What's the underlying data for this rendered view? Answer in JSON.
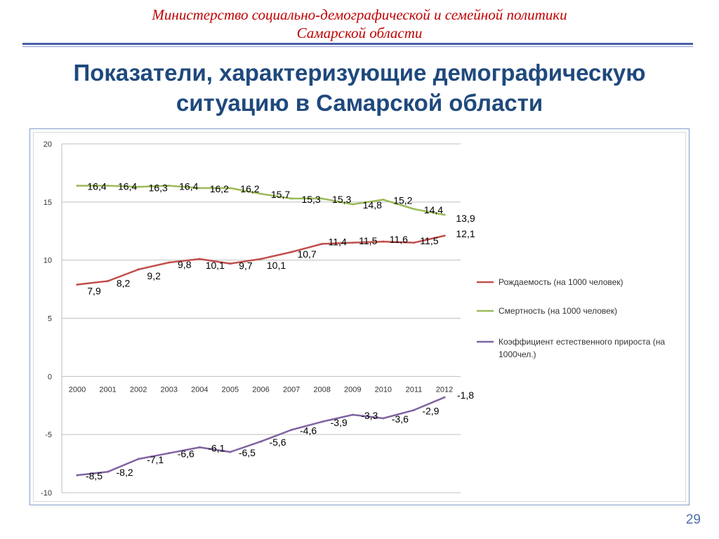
{
  "header": {
    "ministry_line1": "Министерство социально-демографической и семейной политики",
    "ministry_line2": "Самарской области",
    "title_line1": "Показатели, характеризующие демографическую",
    "title_line2": "ситуацию в Самарской области"
  },
  "page_number": "29",
  "colors": {
    "ministry": "#c00000",
    "title": "#1f497d",
    "birth": "#c0504d",
    "death": "#9bbb59",
    "growth": "#8064a2"
  },
  "chart_data": {
    "type": "line",
    "categories": [
      "2000",
      "2001",
      "2002",
      "2003",
      "2004",
      "2005",
      "2006",
      "2007",
      "2008",
      "2009",
      "2010",
      "2011",
      "2012"
    ],
    "ylim": [
      -10,
      20
    ],
    "yticks": [
      "20",
      "15",
      "10",
      "5",
      "0",
      "-5",
      "-10"
    ],
    "grid": true,
    "legend_position": "right",
    "series": [
      {
        "name": "Рождаемость (на 1000 человек)",
        "color": "#c0504d",
        "values": [
          7.9,
          8.2,
          9.2,
          9.8,
          10.1,
          9.7,
          10.1,
          10.7,
          11.4,
          11.5,
          11.6,
          11.5,
          12.1
        ],
        "labels": [
          "7,9",
          "8,2",
          "9,2",
          "9,8",
          "10,1",
          "9,7",
          "10,1",
          "10,7",
          "11,4",
          "11,5",
          "11,6",
          "11,5",
          "12,1"
        ]
      },
      {
        "name": "Смертность (на 1000 человек)",
        "color": "#9bbb59",
        "values": [
          16.4,
          16.4,
          16.3,
          16.4,
          16.2,
          16.2,
          15.7,
          15.3,
          15.3,
          14.8,
          15.2,
          14.4,
          13.9
        ],
        "labels": [
          "16,4",
          "16,4",
          "16,3",
          "16,4",
          "16,2",
          "16,2",
          "15,7",
          "15,3",
          "15,3",
          "14,8",
          "15,2",
          "14,4",
          "13,9"
        ]
      },
      {
        "name": "Коэффициент естественного прироста (на 1000чел.)",
        "color": "#8064a2",
        "values": [
          -8.5,
          -8.2,
          -7.1,
          -6.6,
          -6.1,
          -6.5,
          -5.6,
          -4.6,
          -3.9,
          -3.3,
          -3.6,
          -2.9,
          -1.8
        ],
        "labels": [
          "-8,5",
          "-8,2",
          "-7,1",
          "-6,6",
          "-6,1",
          "-6,5",
          "-5,6",
          "-4,6",
          "-3,9",
          "-3,3",
          "-3,6",
          "-2,9",
          "-1,8"
        ]
      }
    ],
    "legend_lines": [
      [
        "Рождаемость (на 1000 человек)"
      ],
      [
        "Смертность (на 1000 человек)"
      ],
      [
        "Коэффициент естественного прироста (на",
        "1000чел.)"
      ]
    ]
  }
}
